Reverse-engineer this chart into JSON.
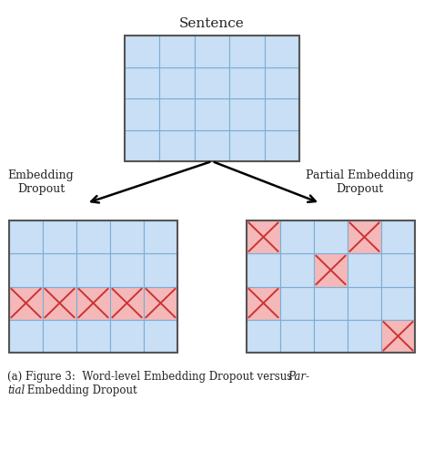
{
  "fig_width": 4.66,
  "fig_height": 4.95,
  "dpi": 100,
  "bg_color": "#ffffff",
  "cell_blue": "#c9dff5",
  "cell_red": "#f5b8b8",
  "border_blue": "#7aadd4",
  "border_red": "#cc3333",
  "border_outer": "#555555",
  "text_color": "#222222",
  "title_text": "Sentence",
  "label_left": "Embedding\nDropout",
  "label_right": "Partial Embedding\nDropout",
  "cap_prefix": "(a) Figure 3:  Word-level Embedding Dropout versus ",
  "cap_italic1": "Par-",
  "cap_italic2": "tial",
  "cap_suffix": " Embedding Dropout"
}
